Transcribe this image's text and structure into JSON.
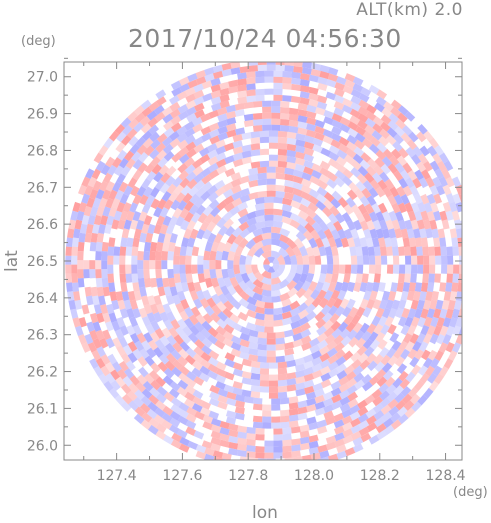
{
  "header": {
    "alt_label": "ALT(km) 2.0",
    "time_label": "2017/10/24 04:56:30"
  },
  "axes": {
    "xlabel": "lon",
    "ylabel": "lat",
    "xunit": "(deg)",
    "yunit": "(deg)"
  },
  "colors": {
    "positive": "#ff9a9a",
    "negative": "#a8a8ff",
    "frame": "#888888"
  },
  "chart_data": {
    "type": "heatmap",
    "title": "2017/10/24 04:56:30",
    "subtitle": "ALT(km) 2.0",
    "xlabel": "lon",
    "ylabel": "lat",
    "xlim": [
      127.24,
      128.45
    ],
    "ylim": [
      25.96,
      27.04
    ],
    "x_ticks": [
      "127.4",
      "127.6",
      "127.8",
      "128.0",
      "128.2",
      "128.4"
    ],
    "x_tick_values": [
      127.4,
      127.6,
      127.8,
      128.0,
      128.2,
      128.4
    ],
    "y_ticks": [
      "26.0",
      "26.1",
      "26.2",
      "26.3",
      "26.4",
      "26.5",
      "26.6",
      "26.7",
      "26.8",
      "26.9",
      "27.0"
    ],
    "y_tick_values": [
      26.0,
      26.1,
      26.2,
      26.3,
      26.4,
      26.5,
      26.6,
      26.7,
      26.8,
      26.9,
      27.0
    ],
    "field": {
      "center_lon": 127.87,
      "center_lat": 26.49,
      "radius_deg_lon": 0.625,
      "radius_deg_lat": 0.56,
      "description_colors": [
        "positive",
        "negative"
      ]
    }
  }
}
